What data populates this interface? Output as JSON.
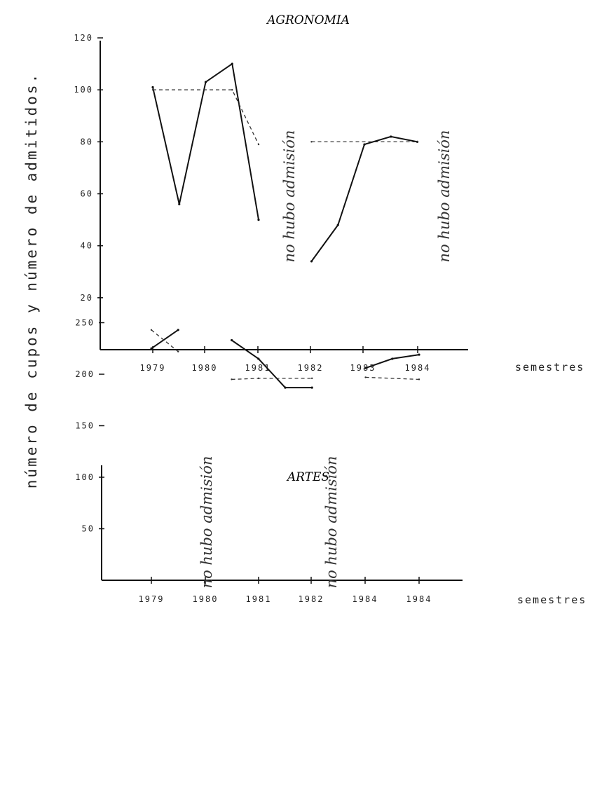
{
  "ylabel": "número de cupos y número de admitidos.",
  "chart_data": [
    {
      "type": "line",
      "title": "AGRONOMIA",
      "xlabel": "semestres",
      "ylabel": "número de cupos y número de admitidos.",
      "x_ticks": [
        "1979",
        "1980",
        "1981",
        "1982",
        "1983",
        "1984"
      ],
      "y_ticks": [
        "20",
        "40",
        "60",
        "80",
        "100",
        "120"
      ],
      "ylim": [
        0,
        120
      ],
      "annotations": [
        "no hubo admisión",
        "no hubo admisión"
      ],
      "series": [
        {
          "style": "solid",
          "segments": [
            [
              [
                1979.0,
                101
              ],
              [
                1979.5,
                56
              ],
              [
                1980.0,
                103
              ],
              [
                1980.5,
                110
              ],
              [
                1981.0,
                50
              ]
            ],
            [
              [
                1982.0,
                34
              ],
              [
                1982.5,
                48
              ],
              [
                1983.0,
                79
              ],
              [
                1983.5,
                82
              ],
              [
                1984.0,
                80
              ]
            ]
          ]
        },
        {
          "style": "dashed",
          "segments": [
            [
              [
                1979.0,
                100
              ],
              [
                1980.5,
                100
              ],
              [
                1981.0,
                79
              ]
            ],
            [
              [
                1982.0,
                80
              ],
              [
                1984.0,
                80
              ]
            ]
          ]
        }
      ]
    },
    {
      "type": "line",
      "title": "ARTES",
      "xlabel": "semestres",
      "ylabel": "número de cupos y número de admitidos.",
      "x_ticks": [
        "1979",
        "1980",
        "1981",
        "1982",
        "1984",
        "1984"
      ],
      "y_ticks": [
        "50",
        "100",
        "150",
        "200",
        "250"
      ],
      "ylim": [
        0,
        300
      ],
      "annotations": [
        "no hubo admisión",
        "no hubo admisión"
      ],
      "series": [
        {
          "style": "solid",
          "segments": [
            [
              [
                0.0,
                225
              ],
              [
                0.5,
                243
              ]
            ],
            [
              [
                1.5,
                233
              ],
              [
                2.0,
                215
              ],
              [
                2.5,
                187
              ],
              [
                3.0,
                187
              ]
            ],
            [
              [
                4.0,
                206
              ],
              [
                4.5,
                215
              ],
              [
                5.0,
                219
              ]
            ]
          ]
        },
        {
          "style": "dashed",
          "segments": [
            [
              [
                0.0,
                243
              ],
              [
                0.5,
                222
              ]
            ],
            [
              [
                1.5,
                195
              ],
              [
                2.0,
                196
              ],
              [
                3.0,
                196
              ]
            ],
            [
              [
                4.0,
                197
              ],
              [
                5.0,
                195
              ]
            ]
          ]
        }
      ]
    }
  ]
}
